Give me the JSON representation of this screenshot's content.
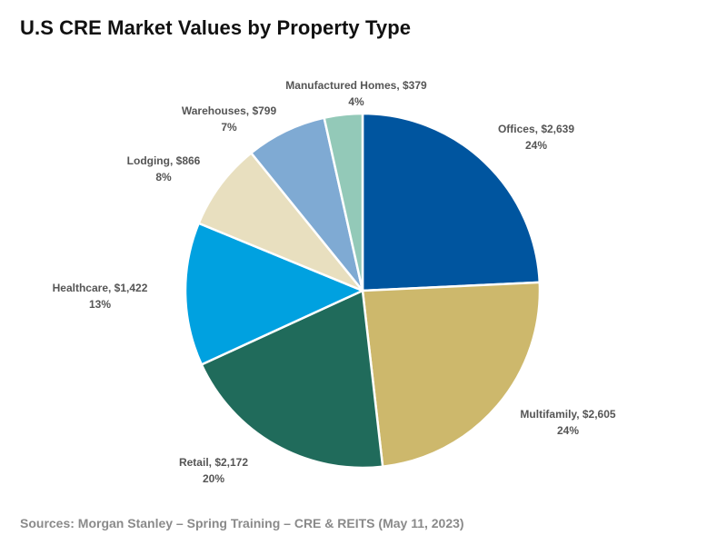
{
  "title": "U.S CRE Market Values by Property Type",
  "source": "Sources: Morgan Stanley – Spring Training – CRE & REITS (May 11, 2023)",
  "chart_data": {
    "type": "pie",
    "title": "U.S CRE Market Values by Property Type",
    "slices": [
      {
        "name": "Offices",
        "value": 2639,
        "value_label": "$2,639",
        "percent_label": "24%",
        "color": "#00559f"
      },
      {
        "name": "Multifamily",
        "value": 2605,
        "value_label": "$2,605",
        "percent_label": "24%",
        "color": "#cdb86c"
      },
      {
        "name": "Retail",
        "value": 2172,
        "value_label": "$2,172",
        "percent_label": "20%",
        "color": "#206b5b"
      },
      {
        "name": "Healthcare",
        "value": 1422,
        "value_label": "$1,422",
        "percent_label": "13%",
        "color": "#00a1e0"
      },
      {
        "name": "Lodging",
        "value": 866,
        "value_label": "$866",
        "percent_label": "8%",
        "color": "#e8dfbf"
      },
      {
        "name": "Warehouses",
        "value": 799,
        "value_label": "$799",
        "percent_label": "7%",
        "color": "#7faad3"
      },
      {
        "name": "Manufactured Homes",
        "value": 379,
        "value_label": "$379",
        "percent_label": "4%",
        "color": "#93c9b8"
      }
    ]
  }
}
